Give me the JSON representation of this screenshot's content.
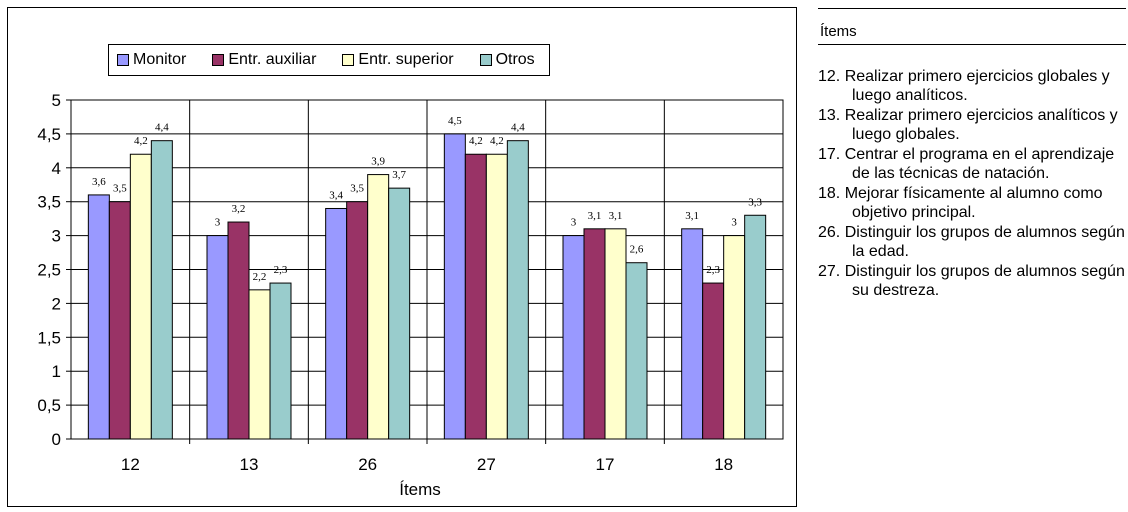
{
  "chart_data": {
    "type": "bar",
    "categories": [
      "12",
      "13",
      "26",
      "27",
      "17",
      "18"
    ],
    "series": [
      {
        "name": "Monitor",
        "color": "#9999ff",
        "values": [
          3.6,
          3.0,
          3.4,
          4.5,
          3.0,
          3.1
        ],
        "labels": [
          "3,6",
          "3",
          "3,4",
          "4,5",
          "3",
          "3,1"
        ]
      },
      {
        "name": "Entr. auxiliar",
        "color": "#993366",
        "values": [
          3.5,
          3.2,
          3.5,
          4.2,
          3.1,
          2.3
        ],
        "labels": [
          "3,5",
          "3,2",
          "3,5",
          "4,2",
          "3,1",
          "2,3"
        ]
      },
      {
        "name": "Entr. superior",
        "color": "#ffffcc",
        "values": [
          4.2,
          2.2,
          3.9,
          4.2,
          3.1,
          3.0
        ],
        "labels": [
          "4,2",
          "2,2",
          "3,9",
          "4,2",
          "3,1",
          "3"
        ]
      },
      {
        "name": "Otros",
        "color": "#99cccc",
        "values": [
          4.4,
          2.3,
          3.7,
          4.4,
          2.6,
          3.3
        ],
        "labels": [
          "4,4",
          "2,3",
          "3,7",
          "4,4",
          "2,6",
          "3,3"
        ]
      }
    ],
    "ylim": [
      0,
      5
    ],
    "yticks": [
      "0",
      "0,5",
      "1",
      "1,5",
      "2",
      "2,5",
      "3",
      "3,5",
      "4",
      "4,5",
      "5"
    ],
    "xlabel": "Ítems",
    "ylabel": "",
    "grid": true,
    "legend_position": "top"
  },
  "side_panel": {
    "title": "Ítems",
    "items": [
      "12. Realizar primero ejercicios globales y luego analíticos.",
      "13. Realizar primero ejercicios analíticos y luego globales.",
      "17. Centrar el programa en el aprendizaje de las técnicas de natación.",
      "18. Mejorar físicamente al alumno como objetivo principal.",
      "26. Distinguir los grupos de alumnos según la edad.",
      "27. Distinguir los grupos de alumnos según su destreza."
    ]
  }
}
